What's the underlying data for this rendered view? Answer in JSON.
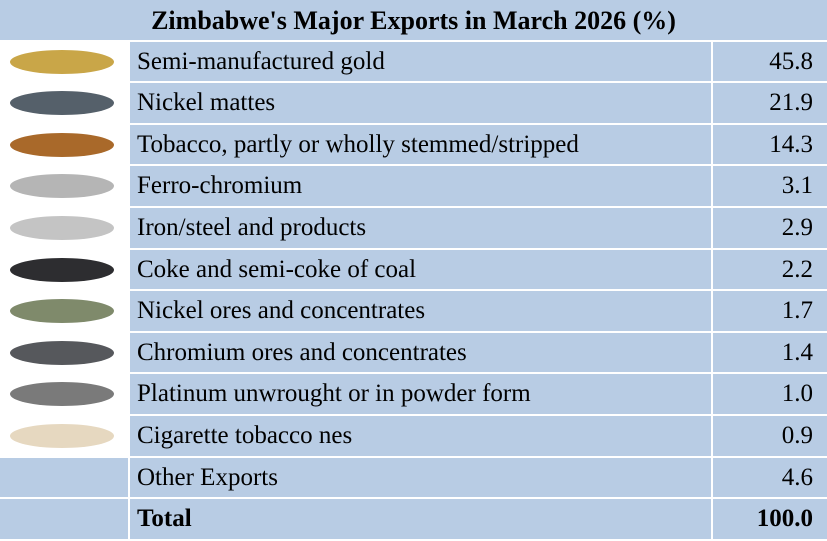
{
  "table": {
    "title": "Zimbabwe's Major Exports in March 2026 (%)",
    "rows": [
      [
        "Semi-manufactured gold",
        "45.8"
      ],
      [
        "Nickel mattes",
        "21.9"
      ],
      [
        "Tobacco, partly or wholly stemmed/stripped",
        "14.3"
      ],
      [
        "Ferro-chromium",
        "3.1"
      ],
      [
        "Iron/steel and products",
        "2.9"
      ],
      [
        "Coke and semi-coke of coal",
        "2.2"
      ],
      [
        "Nickel ores and concentrates",
        "1.7"
      ],
      [
        "Chromium ores and concentrates",
        "1.4"
      ],
      [
        "Platinum unwrought or in powder form",
        "1.0"
      ],
      [
        "Cigarette tobacco nes",
        "0.9"
      ],
      [
        "Other Exports",
        "4.6"
      ]
    ],
    "total": [
      "Total",
      "100.0"
    ]
  }
}
